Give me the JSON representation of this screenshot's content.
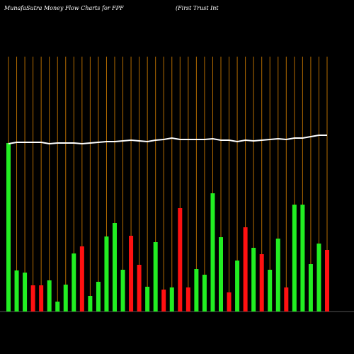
{
  "chart_data": {
    "type": "bar",
    "title": "MunafaSutra  Money Flow  Charts for FPF",
    "subtitle": "(First Trust Int",
    "values": [
      238,
      58,
      55,
      37,
      37,
      44,
      14,
      38,
      82,
      92,
      22,
      42,
      106,
      125,
      59,
      107,
      66,
      35,
      98,
      31,
      34,
      146,
      34,
      60,
      52,
      167,
      105,
      27,
      72,
      119,
      90,
      81,
      59,
      103,
      34,
      151,
      151,
      67,
      96,
      87
    ],
    "bar_colors": [
      "#22ee22",
      "#22ee22",
      "#22ee22",
      "#ff1111",
      "#ff1111",
      "#22ee22",
      "#22ee22",
      "#22ee22",
      "#22ee22",
      "#ff1111",
      "#22ee22",
      "#22ee22",
      "#22ee22",
      "#22ee22",
      "#22ee22",
      "#ff1111",
      "#ff1111",
      "#22ee22",
      "#22ee22",
      "#ff1111",
      "#22ee22",
      "#ff1111",
      "#ff1111",
      "#22ee22",
      "#22ee22",
      "#22ee22",
      "#22ee22",
      "#ff1111",
      "#22ee22",
      "#ff1111",
      "#22ee22",
      "#ff1111",
      "#22ee22",
      "#22ee22",
      "#ff1111",
      "#22ee22",
      "#22ee22",
      "#22ee22",
      "#22ee22",
      "#ff1111"
    ],
    "line_values": [
      237,
      239,
      239,
      239,
      239,
      237,
      238,
      238,
      238,
      237,
      238,
      239,
      240,
      240,
      241,
      242,
      241,
      240,
      242,
      243,
      245,
      243,
      243,
      243,
      243,
      244,
      242,
      242,
      240,
      242,
      241,
      242,
      243,
      244,
      243,
      245,
      245,
      247,
      249,
      249
    ],
    "line_color": "#ffffff",
    "ylim": [
      0,
      360
    ]
  }
}
